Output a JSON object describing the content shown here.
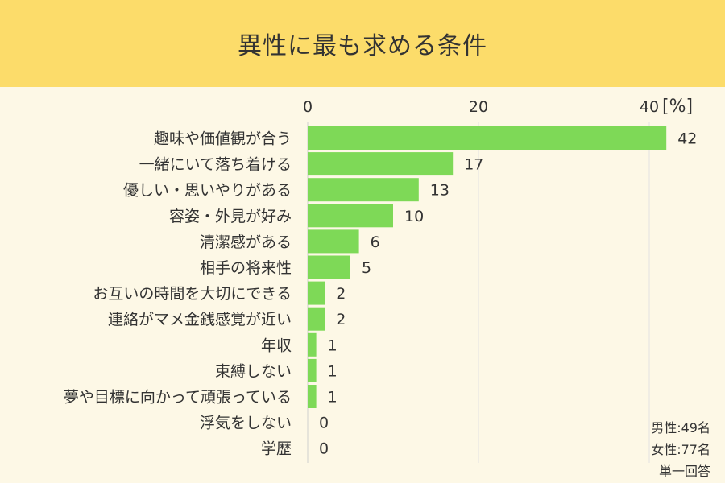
{
  "title": "異性に最も求める条件",
  "chart_data": {
    "type": "bar",
    "orientation": "horizontal",
    "unit": "[%]",
    "xlim": [
      0,
      42
    ],
    "ticks": [
      0,
      20,
      40
    ],
    "grid": true,
    "color": "#7ed957",
    "categories": [
      "趣味や価値観が合う",
      "一緒にいて落ち着ける",
      "優しい・思いやりがある",
      "容姿・外見が好み",
      "清潔感がある",
      "相手の将来性",
      "お互いの時間を大切にできる",
      "連絡がマメ金銭感覚が近い",
      "年収",
      "束縛しない",
      "夢や目標に向かって頑張っている",
      "浮気をしない",
      "学歴"
    ],
    "values": [
      42,
      17,
      13,
      10,
      6,
      5,
      2,
      2,
      1,
      1,
      1,
      0,
      0
    ]
  },
  "notes": {
    "men": "男性:49名",
    "women": "女性:77名",
    "answer_type": "単一回答"
  }
}
